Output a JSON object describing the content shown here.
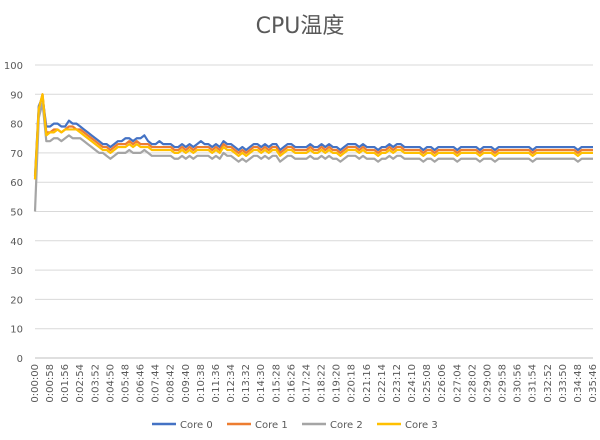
{
  "chart_data": {
    "type": "line",
    "title": "CPU温度",
    "xlabel": "",
    "ylabel": "",
    "ylim": [
      0,
      100
    ],
    "y_ticks": [
      0,
      10,
      20,
      30,
      40,
      50,
      60,
      70,
      80,
      90,
      100
    ],
    "x_tick_labels": [
      "0:00:00",
      "0:00:58",
      "0:01:56",
      "0:02:54",
      "0:03:52",
      "0:04:50",
      "0:05:48",
      "0:06:46",
      "0:07:44",
      "0:08:42",
      "0:09:40",
      "0:10:38",
      "0:11:36",
      "0:12:34",
      "0:13:32",
      "0:14:30",
      "0:15:28",
      "0:16:26",
      "0:17:24",
      "0:18:22",
      "0:19:20",
      "0:20:18",
      "0:21:16",
      "0:22:14",
      "0:23:12",
      "0:24:10",
      "0:25:08",
      "0:26:06",
      "0:27:04",
      "0:28:02",
      "0:29:00",
      "0:29:58",
      "0:30:56",
      "0:31:54",
      "0:32:52",
      "0:33:50",
      "0:34:48",
      "0:35:46"
    ],
    "x": [
      "0:00:00",
      "0:00:14",
      "0:00:29",
      "0:00:43",
      "0:00:58",
      "0:01:12",
      "0:01:27",
      "0:01:41",
      "0:01:56",
      "0:02:10",
      "0:02:25",
      "0:02:39",
      "0:02:54",
      "0:03:08",
      "0:03:23",
      "0:03:37",
      "0:03:52",
      "0:04:06",
      "0:04:21",
      "0:04:35",
      "0:04:50",
      "0:05:04",
      "0:05:19",
      "0:05:33",
      "0:05:48",
      "0:06:02",
      "0:06:17",
      "0:06:31",
      "0:06:46",
      "0:07:00",
      "0:07:15",
      "0:07:29",
      "0:07:44",
      "0:07:58",
      "0:08:13",
      "0:08:27",
      "0:08:42",
      "0:08:56",
      "0:09:11",
      "0:09:25",
      "0:09:40",
      "0:09:54",
      "0:10:09",
      "0:10:23",
      "0:10:38",
      "0:10:52",
      "0:11:07",
      "0:11:21",
      "0:11:36",
      "0:11:50",
      "0:12:05",
      "0:12:19",
      "0:12:34",
      "0:12:48",
      "0:13:03",
      "0:13:17",
      "0:13:32",
      "0:13:46",
      "0:14:01",
      "0:14:15",
      "0:14:30",
      "0:14:44",
      "0:14:59",
      "0:15:13",
      "0:15:28",
      "0:15:42",
      "0:15:57",
      "0:16:11",
      "0:16:26",
      "0:16:40",
      "0:16:55",
      "0:17:09",
      "0:17:24",
      "0:17:38",
      "0:17:53",
      "0:18:07",
      "0:18:22",
      "0:18:36",
      "0:18:51",
      "0:19:05",
      "0:19:20",
      "0:19:34",
      "0:19:49",
      "0:20:03",
      "0:20:18",
      "0:20:32",
      "0:20:47",
      "0:21:01",
      "0:21:16",
      "0:21:30",
      "0:21:45",
      "0:21:59",
      "0:22:14",
      "0:22:28",
      "0:22:43",
      "0:22:57",
      "0:23:12",
      "0:23:26",
      "0:23:41",
      "0:23:55",
      "0:24:10",
      "0:24:24",
      "0:24:39",
      "0:24:53",
      "0:25:08",
      "0:25:22",
      "0:25:37",
      "0:25:51",
      "0:26:06",
      "0:26:20",
      "0:26:35",
      "0:26:49",
      "0:27:04",
      "0:27:18",
      "0:27:33",
      "0:27:47",
      "0:28:02",
      "0:28:16",
      "0:28:31",
      "0:28:45",
      "0:29:00",
      "0:29:14",
      "0:29:29",
      "0:29:43",
      "0:29:58",
      "0:30:12",
      "0:30:27",
      "0:30:41",
      "0:30:56",
      "0:31:10",
      "0:31:25",
      "0:31:39",
      "0:31:54",
      "0:32:08",
      "0:32:23",
      "0:32:37",
      "0:32:52",
      "0:33:06",
      "0:33:21",
      "0:33:35",
      "0:33:50",
      "0:34:04",
      "0:34:19",
      "0:34:33",
      "0:34:48",
      "0:35:02",
      "0:35:17",
      "0:35:31",
      "0:35:46"
    ],
    "series": [
      {
        "name": "Core 0",
        "color": "#4472C4",
        "values": [
          62,
          86,
          89,
          79,
          79,
          80,
          80,
          79,
          79,
          81,
          80,
          80,
          79,
          78,
          77,
          76,
          75,
          74,
          73,
          73,
          72,
          73,
          74,
          74,
          75,
          75,
          74,
          75,
          75,
          76,
          74,
          73,
          73,
          74,
          73,
          73,
          73,
          72,
          72,
          73,
          72,
          73,
          72,
          73,
          74,
          73,
          73,
          72,
          73,
          72,
          74,
          73,
          73,
          72,
          71,
          72,
          71,
          72,
          73,
          73,
          72,
          73,
          72,
          73,
          73,
          71,
          72,
          73,
          73,
          72,
          72,
          72,
          72,
          73,
          72,
          72,
          73,
          72,
          73,
          72,
          72,
          71,
          72,
          73,
          73,
          73,
          72,
          73,
          72,
          72,
          72,
          71,
          72,
          72,
          73,
          72,
          73,
          73,
          72,
          72,
          72,
          72,
          72,
          71,
          72,
          72,
          71,
          72,
          72,
          72,
          72,
          72,
          71,
          72,
          72,
          72,
          72,
          72,
          71,
          72,
          72,
          72,
          71,
          72,
          72,
          72,
          72,
          72,
          72,
          72,
          72,
          72,
          71,
          72,
          72,
          72,
          72,
          72,
          72,
          72,
          72,
          72,
          72,
          72,
          71,
          72,
          72,
          72,
          72
        ]
      },
      {
        "name": "Core 1",
        "color": "#ED7D31",
        "values": [
          61,
          85,
          90,
          77,
          77,
          78,
          78,
          77,
          78,
          79,
          79,
          78,
          78,
          77,
          76,
          75,
          74,
          73,
          72,
          72,
          71,
          72,
          73,
          73,
          73,
          74,
          73,
          74,
          73,
          73,
          73,
          72,
          72,
          72,
          72,
          72,
          72,
          71,
          71,
          72,
          71,
          72,
          71,
          72,
          72,
          72,
          72,
          71,
          72,
          71,
          73,
          72,
          72,
          71,
          70,
          71,
          70,
          71,
          72,
          72,
          71,
          72,
          71,
          72,
          72,
          70,
          71,
          72,
          72,
          71,
          71,
          71,
          71,
          72,
          71,
          71,
          72,
          71,
          72,
          71,
          71,
          70,
          71,
          72,
          72,
          72,
          71,
          72,
          71,
          71,
          71,
          70,
          71,
          71,
          72,
          71,
          72,
          72,
          71,
          71,
          71,
          71,
          71,
          70,
          71,
          71,
          70,
          71,
          71,
          71,
          71,
          71,
          70,
          71,
          71,
          71,
          71,
          71,
          70,
          71,
          71,
          71,
          70,
          71,
          71,
          71,
          71,
          71,
          71,
          71,
          71,
          71,
          70,
          71,
          71,
          71,
          71,
          71,
          71,
          71,
          71,
          71,
          71,
          71,
          70,
          71,
          71,
          71,
          71
        ]
      },
      {
        "name": "Core 2",
        "color": "#A5A5A5",
        "values": [
          50,
          82,
          87,
          74,
          74,
          75,
          75,
          74,
          75,
          76,
          75,
          75,
          75,
          74,
          73,
          72,
          71,
          70,
          70,
          69,
          68,
          69,
          70,
          70,
          70,
          71,
          70,
          70,
          70,
          71,
          70,
          69,
          69,
          69,
          69,
          69,
          69,
          68,
          68,
          69,
          68,
          69,
          68,
          69,
          69,
          69,
          69,
          68,
          69,
          68,
          70,
          69,
          69,
          68,
          67,
          68,
          67,
          68,
          69,
          69,
          68,
          69,
          68,
          69,
          69,
          67,
          68,
          69,
          69,
          68,
          68,
          68,
          68,
          69,
          68,
          68,
          69,
          68,
          69,
          68,
          68,
          67,
          68,
          69,
          69,
          69,
          68,
          69,
          68,
          68,
          68,
          67,
          68,
          68,
          69,
          68,
          69,
          69,
          68,
          68,
          68,
          68,
          68,
          67,
          68,
          68,
          67,
          68,
          68,
          68,
          68,
          68,
          67,
          68,
          68,
          68,
          68,
          68,
          67,
          68,
          68,
          68,
          67,
          68,
          68,
          68,
          68,
          68,
          68,
          68,
          68,
          68,
          67,
          68,
          68,
          68,
          68,
          68,
          68,
          68,
          68,
          68,
          68,
          68,
          67,
          68,
          68,
          68,
          68
        ]
      },
      {
        "name": "Core 3",
        "color": "#FFC000",
        "values": [
          61,
          85,
          90,
          76,
          77,
          77,
          78,
          77,
          78,
          78,
          78,
          78,
          77,
          76,
          75,
          74,
          73,
          72,
          71,
          71,
          70,
          71,
          72,
          72,
          72,
          73,
          72,
          73,
          72,
          72,
          72,
          71,
          71,
          71,
          71,
          71,
          71,
          70,
          70,
          71,
          70,
          71,
          70,
          71,
          71,
          71,
          71,
          70,
          71,
          70,
          72,
          71,
          71,
          70,
          69,
          70,
          69,
          70,
          71,
          71,
          70,
          71,
          70,
          71,
          71,
          69,
          70,
          71,
          71,
          70,
          70,
          70,
          70,
          71,
          70,
          70,
          71,
          70,
          71,
          70,
          70,
          69,
          70,
          71,
          71,
          71,
          70,
          71,
          70,
          70,
          70,
          69,
          70,
          70,
          71,
          70,
          71,
          71,
          70,
          70,
          70,
          70,
          70,
          69,
          70,
          70,
          69,
          70,
          70,
          70,
          70,
          70,
          69,
          70,
          70,
          70,
          70,
          70,
          69,
          70,
          70,
          70,
          69,
          70,
          70,
          70,
          70,
          70,
          70,
          70,
          70,
          70,
          69,
          70,
          70,
          70,
          70,
          70,
          70,
          70,
          70,
          70,
          70,
          70,
          69,
          70,
          70,
          70,
          70
        ]
      }
    ],
    "grid": true,
    "legend_position": "bottom"
  }
}
